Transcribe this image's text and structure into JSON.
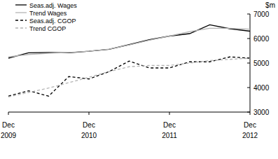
{
  "chart_data": {
    "type": "line",
    "y_label": "$m",
    "categories": [
      "Dec 2009",
      null,
      null,
      null,
      "Dec 2010",
      null,
      null,
      null,
      "Dec 2011",
      null,
      null,
      null,
      "Dec 2012"
    ],
    "series": [
      {
        "name": "Seas.adj. Wages",
        "color": "#000000",
        "line_style": "solid",
        "values": [
          5200,
          5420,
          5430,
          5420,
          5480,
          5560,
          5750,
          5950,
          6100,
          6200,
          6560,
          6400,
          6300
        ]
      },
      {
        "name": "Trend Wages",
        "color": "#b3b3b3",
        "line_style": "solid",
        "values": [
          5250,
          5350,
          5400,
          5430,
          5480,
          5570,
          5740,
          5930,
          6100,
          6280,
          6420,
          6420,
          6380
        ]
      },
      {
        "name": "Seas.adj. CGOP",
        "color": "#000000",
        "line_style": "dashed",
        "values": [
          3650,
          3870,
          3650,
          4450,
          4350,
          4650,
          5080,
          4800,
          4800,
          5050,
          5050,
          5250,
          5200
        ]
      },
      {
        "name": "Trend CGOP",
        "color": "#b3b3b3",
        "line_style": "dashed",
        "values": [
          3620,
          3800,
          3980,
          4200,
          4420,
          4650,
          4850,
          4900,
          4900,
          5000,
          5100,
          5150,
          5200
        ]
      }
    ],
    "ylim": [
      3000,
      7000
    ],
    "yticks": [
      3000,
      4000,
      5000,
      6000,
      7000
    ],
    "grid": false,
    "legend": "top-left"
  }
}
